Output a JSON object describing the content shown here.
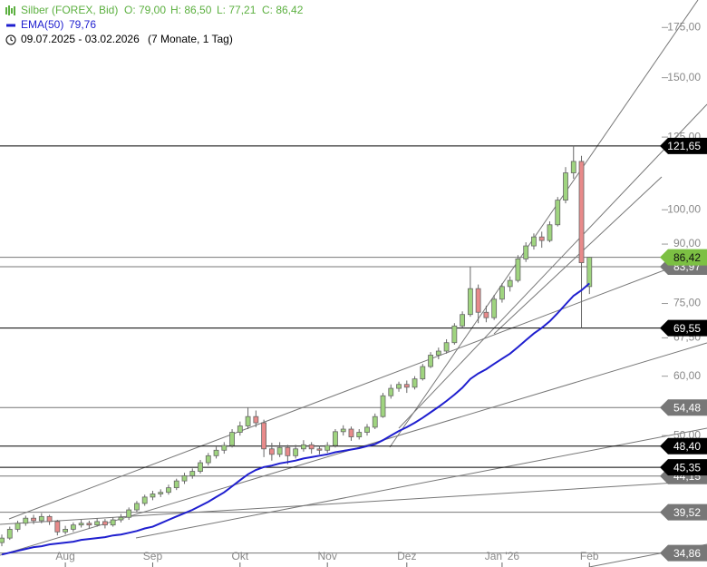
{
  "chart_data": {
    "type": "candlestick",
    "ohlc": [
      {
        "value": 79.0,
        "label": "O: 79,00"
      },
      {
        "value": 86.5,
        "label": "H: 86,50"
      },
      {
        "value": 77.21,
        "label": "L: 77,21"
      },
      {
        "value": 86.42,
        "label": "C: 86,42"
      }
    ],
    "period": "09.07.2025 - 03.02.2026",
    "period_note": "(7 Monate, 1 Tag)",
    "series": [
      {
        "name": "Silber (FOREX, Bid)",
        "color": "#5cb040",
        "up_color": "#9fd47f",
        "down_color": "#e88a8a",
        "open": [
          36.0,
          36.5,
          37.5,
          38.2,
          38.8,
          38.5,
          39.0,
          38.4,
          37.2,
          37.5,
          38.0,
          38.2,
          38.0,
          38.4,
          38.0,
          38.6,
          38.9,
          39.8,
          40.6,
          41.4,
          41.8,
          42.0,
          42.6,
          43.5,
          44.2,
          44.8,
          46.0,
          47.0,
          47.8,
          48.5,
          50.5,
          51.5,
          53.0,
          52.0,
          48.0,
          47.2,
          48.2,
          47.0,
          48.0,
          48.6,
          48.0,
          47.8,
          48.5,
          50.6,
          51.0,
          49.8,
          50.5,
          51.3,
          53.0,
          56.5,
          57.8,
          58.5,
          58.0,
          59.5,
          61.8,
          64.0,
          64.8,
          66.5,
          70.0,
          72.5,
          78.5,
          73.0,
          71.8,
          76.0,
          79.0,
          80.5,
          86.0,
          89.5,
          92.0,
          91.0,
          95.5,
          103.0,
          112.0,
          116.0,
          79.0
        ],
        "high": [
          36.9,
          37.8,
          38.5,
          39.1,
          39.2,
          39.4,
          39.2,
          38.6,
          37.9,
          38.3,
          38.6,
          38.5,
          38.8,
          38.7,
          38.9,
          39.3,
          40.1,
          40.9,
          41.7,
          42.2,
          42.4,
          43.0,
          43.8,
          44.6,
          45.2,
          46.4,
          47.4,
          48.3,
          49.0,
          51.0,
          52.2,
          54.48,
          54.0,
          52.5,
          48.9,
          49.0,
          48.6,
          48.6,
          49.3,
          49.0,
          48.5,
          49.0,
          51.0,
          51.6,
          51.4,
          51.0,
          51.8,
          53.5,
          57.0,
          58.5,
          59.0,
          59.2,
          60.0,
          62.3,
          64.6,
          65.5,
          67.2,
          70.6,
          73.2,
          83.97,
          79.5,
          74.5,
          77.0,
          79.8,
          81.5,
          87.0,
          90.5,
          93.0,
          93.5,
          96.5,
          104.0,
          114.0,
          121.65,
          118.0,
          86.5
        ],
        "low": [
          35.6,
          36.3,
          37.2,
          37.9,
          38.1,
          38.2,
          38.0,
          36.8,
          36.9,
          37.2,
          37.7,
          37.6,
          37.8,
          37.6,
          37.8,
          38.3,
          38.6,
          39.5,
          40.3,
          41.0,
          41.4,
          41.7,
          42.3,
          43.1,
          43.8,
          44.5,
          45.6,
          46.6,
          47.3,
          48.2,
          50.0,
          51.0,
          51.3,
          46.8,
          46.3,
          46.8,
          45.8,
          46.6,
          47.6,
          47.3,
          47.2,
          47.4,
          48.2,
          50.0,
          49.2,
          49.4,
          50.0,
          51.0,
          52.8,
          56.0,
          57.2,
          57.0,
          57.6,
          59.2,
          61.5,
          63.2,
          64.3,
          66.1,
          69.6,
          72.0,
          70.6,
          70.8,
          71.3,
          75.2,
          77.8,
          80.0,
          85.2,
          88.5,
          89.0,
          90.5,
          95.0,
          102.0,
          110.0,
          69.55,
          77.21
        ],
        "close": [
          36.5,
          37.5,
          38.2,
          38.8,
          38.5,
          39.0,
          38.4,
          37.2,
          37.5,
          38.0,
          38.2,
          38.0,
          38.4,
          38.0,
          38.6,
          38.9,
          39.8,
          40.6,
          41.4,
          41.8,
          42.0,
          42.6,
          43.5,
          44.2,
          44.8,
          46.0,
          47.0,
          47.8,
          48.5,
          50.5,
          51.5,
          53.0,
          52.0,
          48.0,
          47.2,
          48.2,
          47.0,
          48.0,
          48.6,
          48.0,
          47.8,
          48.5,
          50.6,
          51.0,
          49.8,
          50.5,
          51.3,
          53.0,
          56.5,
          57.8,
          58.5,
          58.0,
          59.5,
          61.8,
          64.0,
          64.8,
          66.5,
          70.0,
          72.5,
          78.5,
          73.0,
          71.8,
          76.0,
          79.0,
          80.5,
          86.0,
          89.5,
          92.0,
          91.0,
          95.5,
          103.0,
          112.0,
          116.0,
          85.0,
          86.42
        ]
      },
      {
        "name": "EMA(50)",
        "color": "#1f1fcf",
        "last": {
          "value": 79.76,
          "label": "79,76"
        },
        "values": [
          34.7,
          34.9,
          35.1,
          35.3,
          35.5,
          35.6,
          35.8,
          35.9,
          36.0,
          36.1,
          36.3,
          36.4,
          36.5,
          36.6,
          36.8,
          36.9,
          37.1,
          37.3,
          37.6,
          37.8,
          38.2,
          38.6,
          39.0,
          39.4,
          39.8,
          40.3,
          40.8,
          41.4,
          42.0,
          42.8,
          43.6,
          44.4,
          45.0,
          45.4,
          45.6,
          45.9,
          46.1,
          46.3,
          46.6,
          46.8,
          47.0,
          47.2,
          47.5,
          47.7,
          47.9,
          48.1,
          48.4,
          48.7,
          49.3,
          50.0,
          50.7,
          51.3,
          52.0,
          52.8,
          53.7,
          54.6,
          55.6,
          56.7,
          57.9,
          59.5,
          60.5,
          61.3,
          62.3,
          63.3,
          64.3,
          65.6,
          67.0,
          68.4,
          69.6,
          71.0,
          72.8,
          74.8,
          76.8,
          78.1,
          79.76
        ]
      }
    ],
    "y_log": true,
    "ylim": [
      33.4,
      190.4
    ],
    "yticks": [
      {
        "value": 175,
        "label": "175,00"
      },
      {
        "value": 150,
        "label": "150,00"
      },
      {
        "value": 125,
        "label": "125,00"
      },
      {
        "value": 100,
        "label": "100,00"
      },
      {
        "value": 90,
        "label": "90,00"
      },
      {
        "value": 75,
        "label": "75,00"
      },
      {
        "value": 67.5,
        "label": "67,50"
      },
      {
        "value": 60,
        "label": "60,00"
      },
      {
        "value": 50,
        "label": "50,00"
      }
    ],
    "xlim": [
      -0.23,
      83.1
    ],
    "xticks": [
      {
        "value": 8,
        "label": "Aug"
      },
      {
        "value": 19,
        "label": "Sep"
      },
      {
        "value": 30,
        "label": "Okt"
      },
      {
        "value": 41,
        "label": "Nov"
      },
      {
        "value": 51,
        "label": "Dez"
      },
      {
        "value": 63,
        "label": "Jan '26"
      },
      {
        "value": 74,
        "label": "Feb"
      }
    ],
    "levels": [
      {
        "value": 83.97,
        "label": "83,97",
        "color": "#777777"
      },
      {
        "value": 54.48,
        "label": "54,48",
        "color": "#777777"
      },
      {
        "value": 44.15,
        "label": "44,15",
        "color": "#777777"
      },
      {
        "value": 39.52,
        "label": "39,52",
        "color": "#777777"
      },
      {
        "value": 34.86,
        "label": "34,86",
        "color": "#777777"
      },
      {
        "value": 121.65,
        "label": "121,65",
        "color": "#000000"
      },
      {
        "value": 69.55,
        "label": "69,55",
        "color": "#000000"
      },
      {
        "value": 48.4,
        "label": "48,40",
        "color": "#000000"
      },
      {
        "value": 45.35,
        "label": "45,35",
        "color": "#000000"
      },
      {
        "value": 86.42,
        "label": "86,42",
        "color": "#7cc043"
      }
    ]
  }
}
